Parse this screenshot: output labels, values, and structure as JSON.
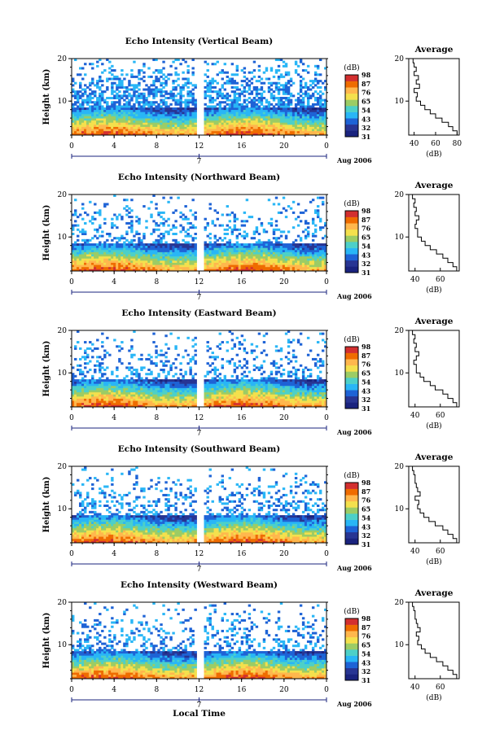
{
  "figure": {
    "xlabel": "Local Time",
    "date_label": "Aug 2006",
    "day_marker": "7",
    "ylabel": "Height (km)",
    "colorbar_unit": "(dB)",
    "colorbar_ticks": [
      "31",
      "32",
      "43",
      "54",
      "65",
      "76",
      "87",
      "98"
    ],
    "profile_title": "Average",
    "profile_xlabel": "(dB)",
    "colors": [
      "#1a237e",
      "#283593",
      "#1e63d6",
      "#29b6f6",
      "#4dd0c8",
      "#9ccc65",
      "#f4e04d",
      "#ffb74d",
      "#ef6c00",
      "#d32f2f"
    ]
  },
  "chart_data": [
    {
      "type": "heatmap",
      "title": "Echo Intensity (Vertical Beam)",
      "x_ticks": [
        "0",
        "4",
        "8",
        "12",
        "16",
        "20",
        "0"
      ],
      "y_ticks": [
        "20",
        "10"
      ],
      "xlim": [
        0,
        24
      ],
      "ylim": [
        2,
        20
      ],
      "gap_hours": [
        11.7,
        12.4
      ],
      "clear_above_km": 8.5,
      "sparse_fraction": 0.25,
      "profile": {
        "title": "Average",
        "xlabel": "(dB)",
        "x_ticks": [
          "40",
          "60",
          "80"
        ],
        "xlim": [
          35,
          82
        ],
        "y_ticks": [
          "20",
          "10"
        ],
        "heights": [
          2,
          3,
          4,
          5,
          6,
          7,
          8,
          9,
          10,
          11,
          12,
          13,
          14,
          15,
          16,
          17,
          18,
          19,
          20
        ],
        "values": [
          80,
          76,
          72,
          66,
          60,
          55,
          50,
          46,
          42,
          43,
          40,
          45,
          42,
          44,
          40,
          42,
          40,
          39,
          40
        ]
      }
    },
    {
      "type": "heatmap",
      "title": "Echo Intensity (Northward Beam)",
      "x_ticks": [
        "0",
        "4",
        "8",
        "12",
        "16",
        "20",
        "0"
      ],
      "y_ticks": [
        "20",
        "10"
      ],
      "xlim": [
        0,
        24
      ],
      "ylim": [
        2,
        20
      ],
      "gap_hours": [
        11.7,
        12.4
      ],
      "clear_above_km": 8.5,
      "sparse_fraction": 0.9,
      "profile": {
        "title": "Average",
        "xlabel": "(dB)",
        "x_ticks": [
          "40",
          "60"
        ],
        "xlim": [
          35,
          75
        ],
        "y_ticks": [
          "20",
          "10"
        ],
        "heights": [
          2,
          3,
          4,
          5,
          6,
          7,
          8,
          9,
          10,
          11,
          12,
          13,
          14,
          15,
          16,
          17,
          18,
          19,
          20
        ],
        "values": [
          73,
          70,
          66,
          62,
          57,
          52,
          48,
          45,
          42,
          42,
          40,
          41,
          43,
          40,
          41,
          39,
          40,
          38,
          39
        ]
      }
    },
    {
      "type": "heatmap",
      "title": "Echo Intensity (Eastward Beam)",
      "x_ticks": [
        "0",
        "4",
        "8",
        "12",
        "16",
        "20",
        "0"
      ],
      "y_ticks": [
        "20",
        "10"
      ],
      "xlim": [
        0,
        24
      ],
      "ylim": [
        2,
        20
      ],
      "gap_hours": [
        11.7,
        12.4
      ],
      "clear_above_km": 8.5,
      "sparse_fraction": 0.9,
      "profile": {
        "title": "Average",
        "xlabel": "(dB)",
        "x_ticks": [
          "40",
          "60"
        ],
        "xlim": [
          35,
          75
        ],
        "y_ticks": [
          "20",
          "10"
        ],
        "heights": [
          2,
          3,
          4,
          5,
          6,
          7,
          8,
          9,
          10,
          11,
          12,
          13,
          14,
          15,
          16,
          17,
          18,
          19,
          20
        ],
        "values": [
          73,
          70,
          66,
          62,
          56,
          52,
          47,
          44,
          41,
          41,
          39,
          41,
          43,
          40,
          41,
          39,
          40,
          38,
          39
        ]
      }
    },
    {
      "type": "heatmap",
      "title": "Echo Intensity (Southward Beam)",
      "x_ticks": [
        "0",
        "4",
        "8",
        "12",
        "16",
        "20",
        "0"
      ],
      "y_ticks": [
        "20",
        "10"
      ],
      "xlim": [
        0,
        24
      ],
      "ylim": [
        2,
        20
      ],
      "gap_hours": [
        11.7,
        12.4
      ],
      "clear_above_km": 8.5,
      "sparse_fraction": 0.9,
      "profile": {
        "title": "Average",
        "xlabel": "(dB)",
        "x_ticks": [
          "40",
          "60"
        ],
        "xlim": [
          35,
          75
        ],
        "y_ticks": [
          "20",
          "10"
        ],
        "heights": [
          2,
          3,
          4,
          5,
          6,
          7,
          8,
          9,
          10,
          11,
          12,
          13,
          14,
          15,
          16,
          17,
          18,
          19,
          20
        ],
        "values": [
          73,
          70,
          66,
          62,
          56,
          51,
          47,
          44,
          42,
          43,
          40,
          44,
          42,
          41,
          40,
          40,
          39,
          38,
          39
        ]
      }
    },
    {
      "type": "heatmap",
      "title": "Echo Intensity (Westward Beam)",
      "x_ticks": [
        "0",
        "4",
        "8",
        "12",
        "16",
        "20",
        "0"
      ],
      "y_ticks": [
        "20",
        "10"
      ],
      "xlim": [
        0,
        24
      ],
      "ylim": [
        2,
        20
      ],
      "gap_hours": [
        11.7,
        12.4
      ],
      "clear_above_km": 8.5,
      "sparse_fraction": 0.9,
      "profile": {
        "title": "Average",
        "xlabel": "(dB)",
        "x_ticks": [
          "40",
          "60"
        ],
        "xlim": [
          35,
          75
        ],
        "y_ticks": [
          "20",
          "10"
        ],
        "heights": [
          2,
          3,
          4,
          5,
          6,
          7,
          8,
          9,
          10,
          11,
          12,
          13,
          14,
          15,
          16,
          17,
          18,
          19,
          20
        ],
        "values": [
          73,
          70,
          66,
          62,
          57,
          52,
          48,
          45,
          42,
          43,
          41,
          44,
          42,
          41,
          40,
          40,
          39,
          38,
          39
        ]
      }
    }
  ]
}
